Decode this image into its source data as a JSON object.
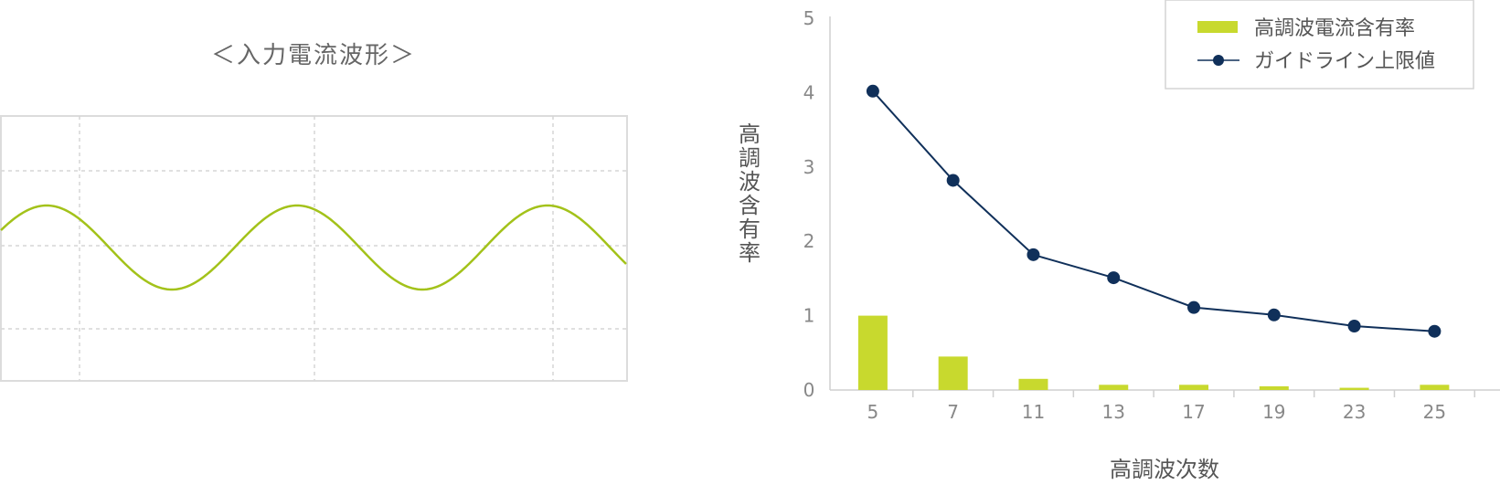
{
  "wave_panel": {
    "title": "＜入力電流波形＞"
  },
  "chart_data": {
    "type": "bar+line",
    "categories": [
      "5",
      "7",
      "11",
      "13",
      "17",
      "19",
      "23",
      "25"
    ],
    "series": [
      {
        "name": "高調波電流含有率",
        "type": "bar",
        "color": "#c8d92e",
        "values": [
          1.0,
          0.45,
          0.15,
          0.07,
          0.07,
          0.05,
          0.03,
          0.07
        ]
      },
      {
        "name": "ガイドライン上限値",
        "type": "line",
        "color": "#10305a",
        "values": [
          4.02,
          2.82,
          1.82,
          1.51,
          1.11,
          1.01,
          0.86,
          0.79
        ]
      }
    ],
    "yticks": [
      "0",
      "1",
      "2",
      "3",
      "4",
      "5"
    ],
    "ylim": [
      0,
      5
    ],
    "xlabel": "高調波次数",
    "ylabel": "高調波含有率",
    "legend_position": "top-right",
    "grid": false
  }
}
